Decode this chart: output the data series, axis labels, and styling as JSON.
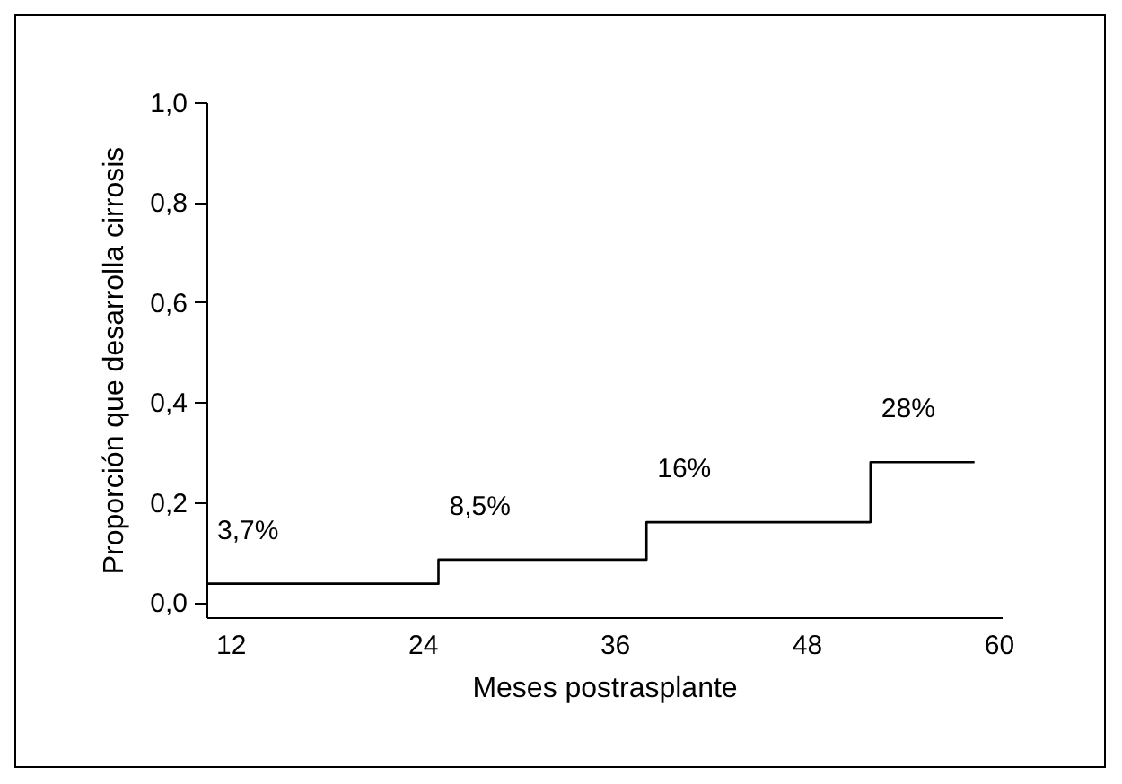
{
  "chart_data": {
    "type": "step",
    "xlabel": "Meses postrasplante",
    "ylabel": "Proporción que desarrolla cirrosis",
    "x": [
      10.5,
      25,
      38,
      52,
      58.5
    ],
    "series": [
      {
        "color": "#000000",
        "values": [
          0.037,
          0.085,
          0.16,
          0.28,
          0.28
        ]
      }
    ],
    "xlim": [
      10.5,
      60.2
    ],
    "xticks": [
      12,
      24,
      36,
      48,
      60
    ],
    "ylim": [
      -0.03,
      1.0
    ],
    "yticks": [
      {
        "value": 0,
        "label": "0,0"
      },
      {
        "value": 0.2,
        "label": "0,2"
      },
      {
        "value": 0.4,
        "label": "0,4"
      },
      {
        "value": 0.6,
        "label": "0,6"
      },
      {
        "value": 0.8,
        "label": "0,8"
      },
      {
        "value": 1,
        "label": "1,0"
      }
    ],
    "annotations": [
      "3,7%",
      "8,5%",
      "16%",
      "28%"
    ],
    "grid": false
  }
}
